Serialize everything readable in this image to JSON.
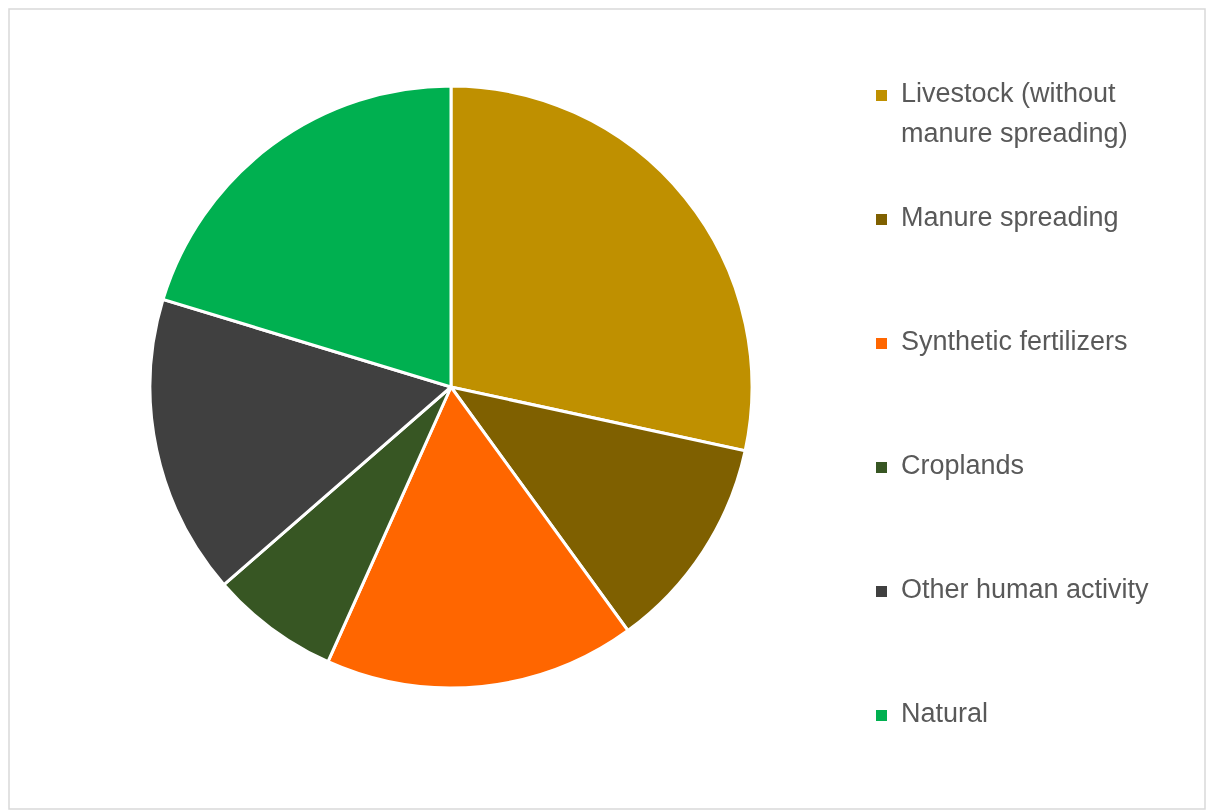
{
  "chart_data": {
    "type": "pie",
    "categories": [
      "Livestock (without manure spreading)",
      "Manure spreading",
      "Synthetic fertilizers",
      "Croplands",
      "Other human activity",
      "Natural"
    ],
    "values": [
      28.4,
      11.6,
      16.7,
      6.9,
      16.1,
      20.3
    ],
    "colors": [
      "#bf9000",
      "#7f6000",
      "#ff6600",
      "#375623",
      "#404040",
      "#00b050"
    ],
    "legend": "right"
  }
}
